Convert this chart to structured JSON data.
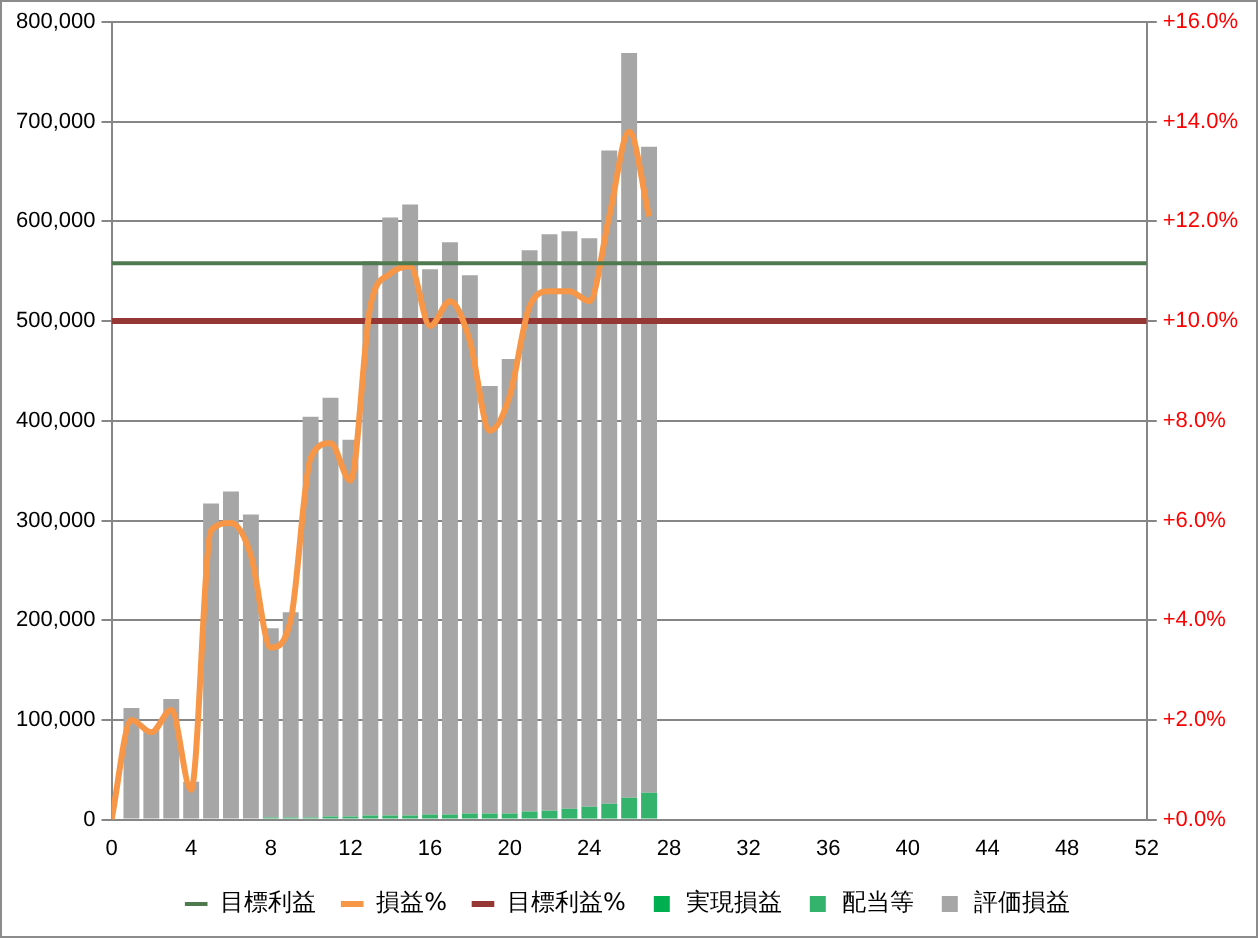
{
  "chart_data": {
    "type": "bar",
    "stacked": true,
    "x": [
      1,
      2,
      3,
      4,
      5,
      6,
      7,
      8,
      9,
      10,
      11,
      12,
      13,
      14,
      15,
      16,
      17,
      18,
      19,
      20,
      21,
      22,
      23,
      24,
      25,
      26,
      27
    ],
    "xlim": [
      0,
      52
    ],
    "xticks": [
      0,
      4,
      8,
      12,
      16,
      20,
      24,
      28,
      32,
      36,
      40,
      44,
      48,
      52
    ],
    "ylim": [
      0,
      800000
    ],
    "yticks": [
      {
        "value": 0,
        "label": "0"
      },
      {
        "value": 100000,
        "label": "100,000"
      },
      {
        "value": 200000,
        "label": "200,000"
      },
      {
        "value": 300000,
        "label": "300,000"
      },
      {
        "value": 400000,
        "label": "400,000"
      },
      {
        "value": 500000,
        "label": "500,000"
      },
      {
        "value": 600000,
        "label": "600,000"
      },
      {
        "value": 700000,
        "label": "700,000"
      },
      {
        "value": 800000,
        "label": "800,000"
      }
    ],
    "y2lim": [
      0,
      16
    ],
    "y2ticks": [
      {
        "value": 0,
        "label": "+0.0%"
      },
      {
        "value": 2,
        "label": "+2.0%"
      },
      {
        "value": 4,
        "label": "+4.0%"
      },
      {
        "value": 6,
        "label": "+6.0%"
      },
      {
        "value": 8,
        "label": "+8.0%"
      },
      {
        "value": 10,
        "label": "+10.0%"
      },
      {
        "value": 12,
        "label": "+12.0%"
      },
      {
        "value": 14,
        "label": "+14.0%"
      },
      {
        "value": 16,
        "label": "+16.0%"
      }
    ],
    "grid": "y",
    "legend": "bottom",
    "series": [
      {
        "name": "実現損益",
        "color": "#00b050",
        "values": [
          0,
          0,
          0,
          0,
          0,
          0,
          0,
          0,
          0,
          0,
          0,
          0,
          0,
          0,
          0,
          0,
          0,
          0,
          0,
          0,
          0,
          0,
          0,
          0,
          0,
          0,
          0
        ]
      },
      {
        "name": "配当等",
        "color": "#33b36b",
        "values": [
          0,
          0,
          0,
          0,
          0,
          0,
          0,
          2000,
          2000,
          2000,
          3000,
          3000,
          4000,
          4000,
          4000,
          5000,
          5000,
          6000,
          6000,
          6000,
          8000,
          9000,
          11000,
          13000,
          16000,
          22000,
          27000
        ]
      },
      {
        "name": "評価損益",
        "color": "#a6a6a6",
        "values": [
          112000,
          89000,
          121000,
          38000,
          317000,
          329000,
          306000,
          190000,
          206000,
          402000,
          420000,
          378000,
          556000,
          600000,
          613000,
          547000,
          574000,
          540000,
          429000,
          456000,
          563000,
          578000,
          579000,
          570000,
          655000,
          747000,
          648000
        ]
      },
      {
        "name": "目標利益",
        "type": "line",
        "color": "#4f7a4f",
        "x": [
          0,
          52
        ],
        "values": [
          558000,
          558000
        ]
      },
      {
        "name": "損益%",
        "type": "line",
        "axis": "y2",
        "color": "#f79646",
        "x": [
          0,
          1,
          2,
          3,
          4,
          5,
          6,
          7,
          8,
          9,
          10,
          11,
          12,
          13,
          14,
          15,
          16,
          17,
          18,
          19,
          20,
          21,
          22,
          23,
          24,
          25,
          26,
          27
        ],
        "values": [
          0,
          2.0,
          1.75,
          2.2,
          0.6,
          5.8,
          5.95,
          5.3,
          3.45,
          4.0,
          7.25,
          7.55,
          6.8,
          10.3,
          10.95,
          11.1,
          9.9,
          10.4,
          9.6,
          7.8,
          8.5,
          10.3,
          10.6,
          10.6,
          10.4,
          12.1,
          13.8,
          12.1
        ]
      },
      {
        "name": "目標利益%",
        "type": "line",
        "axis": "y2",
        "color": "#953735",
        "x": [
          0,
          52
        ],
        "values": [
          10,
          10
        ]
      }
    ]
  }
}
